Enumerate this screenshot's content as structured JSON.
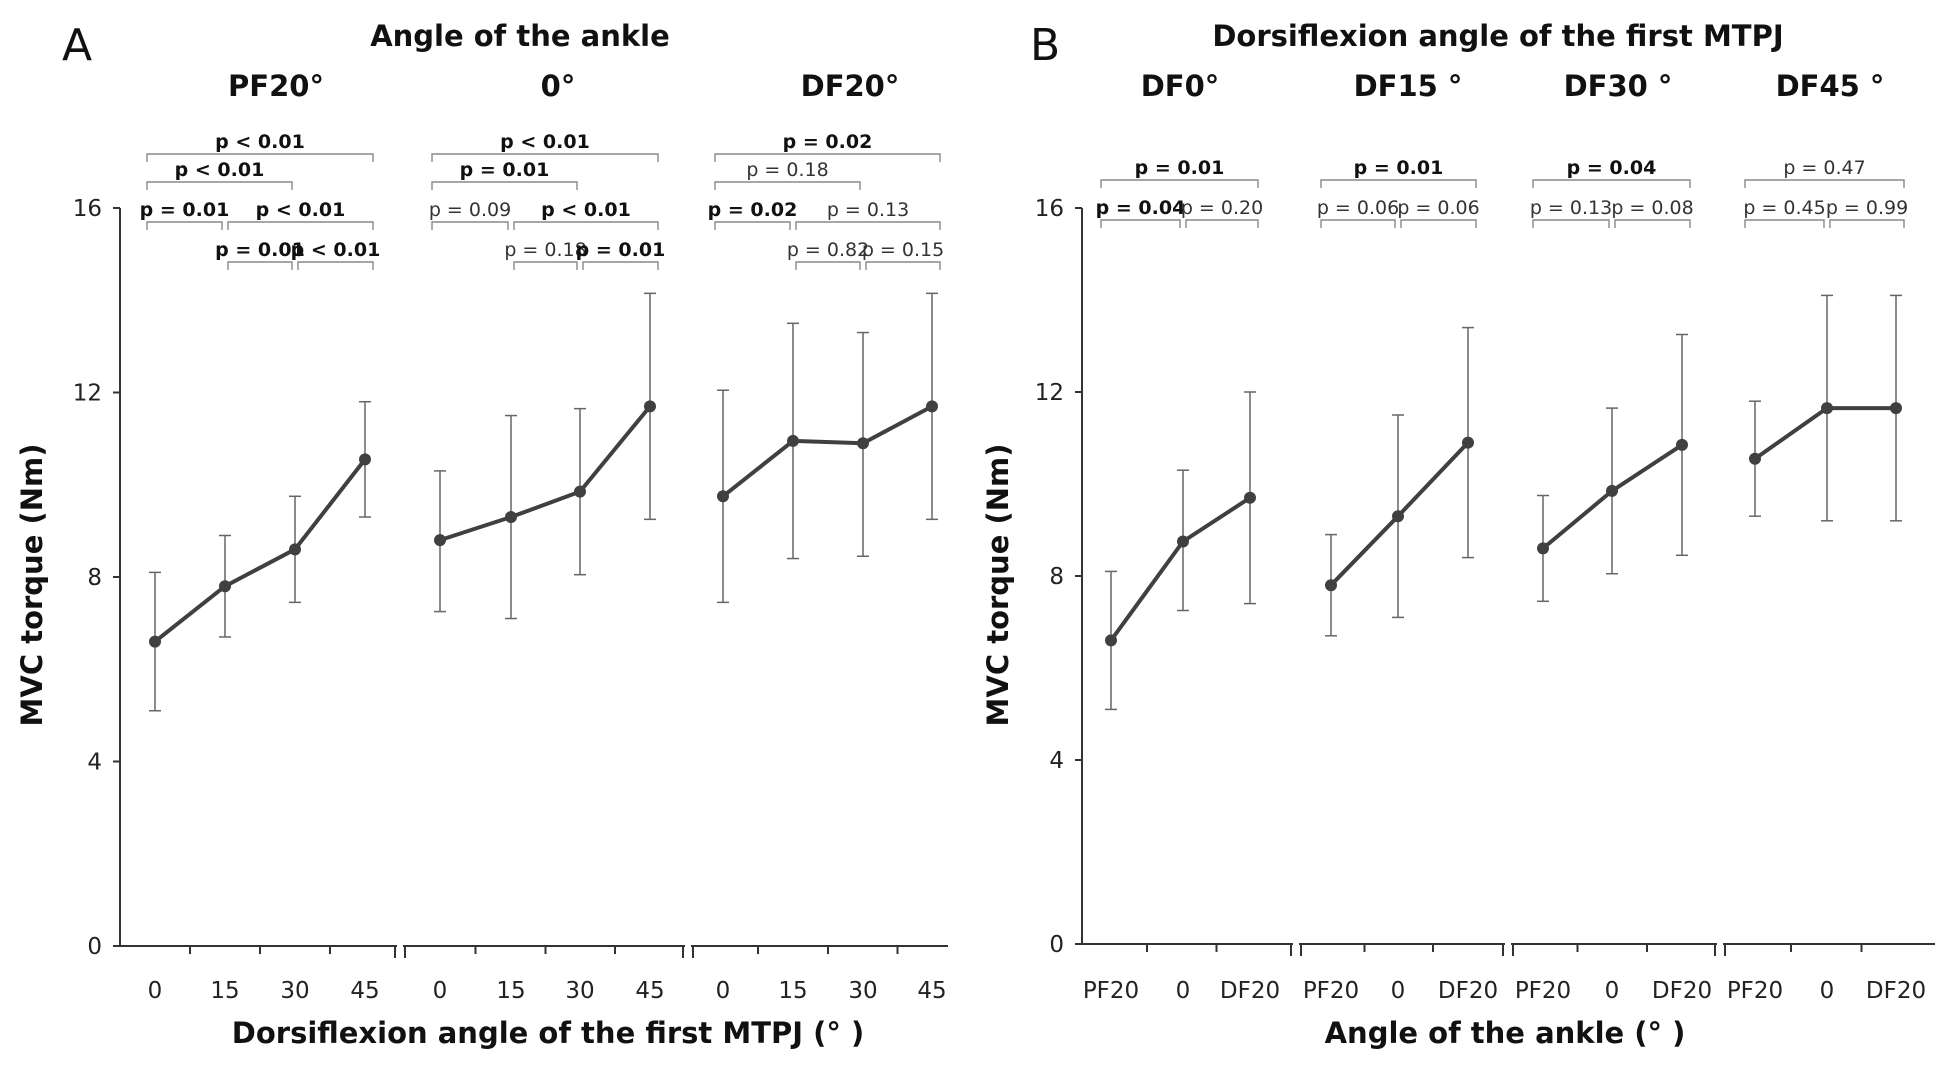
{
  "chart_data": [
    {
      "panel": "A",
      "type": "line",
      "title": "Angle of the ankle",
      "xlabel": "Dorsiflexion angle of the first MTPJ (°  )",
      "ylabel": "MVC torque (Nm)",
      "ylim": [
        0,
        16
      ],
      "yticks": [
        "0",
        "4",
        "8",
        "12",
        "16"
      ],
      "groups": [
        {
          "label": "PF20°",
          "categories": [
            "0",
            "15",
            "30",
            "45"
          ],
          "values": [
            6.6,
            7.8,
            8.6,
            10.55
          ],
          "err_low": [
            5.1,
            6.7,
            7.45,
            9.3
          ],
          "err_high": [
            8.1,
            8.9,
            9.75,
            11.8
          ],
          "comparisons": [
            {
              "i": 0,
              "j": 3,
              "label": "p < 0.01",
              "sig": true
            },
            {
              "i": 0,
              "j": 2,
              "label": "p < 0.01",
              "sig": true
            },
            {
              "i": 0,
              "j": 1,
              "label": "p = 0.01",
              "sig": true
            },
            {
              "i": 1,
              "j": 3,
              "label": "p < 0.01",
              "sig": true
            },
            {
              "i": 1,
              "j": 2,
              "label": "p = 0.01",
              "sig": true
            },
            {
              "i": 2,
              "j": 3,
              "label": "p < 0.01",
              "sig": true
            }
          ]
        },
        {
          "label": "0°",
          "categories": [
            "0",
            "15",
            "30",
            "45"
          ],
          "values": [
            8.8,
            9.3,
            9.85,
            11.7
          ],
          "err_low": [
            7.25,
            7.1,
            8.05,
            9.25
          ],
          "err_high": [
            10.3,
            11.5,
            11.65,
            14.15
          ],
          "comparisons": [
            {
              "i": 0,
              "j": 3,
              "label": "p < 0.01",
              "sig": true
            },
            {
              "i": 0,
              "j": 2,
              "label": "p = 0.01",
              "sig": true
            },
            {
              "i": 0,
              "j": 1,
              "label": "p = 0.09",
              "sig": false
            },
            {
              "i": 1,
              "j": 3,
              "label": "p < 0.01",
              "sig": true
            },
            {
              "i": 1,
              "j": 2,
              "label": "p = 0.18",
              "sig": false
            },
            {
              "i": 2,
              "j": 3,
              "label": "p = 0.01",
              "sig": true
            }
          ]
        },
        {
          "label": "DF20°",
          "categories": [
            "0",
            "15",
            "30",
            "45"
          ],
          "values": [
            9.75,
            10.95,
            10.9,
            11.7
          ],
          "err_low": [
            7.45,
            8.4,
            8.45,
            9.25
          ],
          "err_high": [
            12.05,
            13.5,
            13.3,
            14.15
          ],
          "comparisons": [
            {
              "i": 0,
              "j": 3,
              "label": "p = 0.02",
              "sig": true
            },
            {
              "i": 0,
              "j": 2,
              "label": "p = 0.18",
              "sig": false
            },
            {
              "i": 0,
              "j": 1,
              "label": "p = 0.02",
              "sig": true
            },
            {
              "i": 1,
              "j": 3,
              "label": "p = 0.13",
              "sig": false
            },
            {
              "i": 1,
              "j": 2,
              "label": "p = 0.82",
              "sig": false
            },
            {
              "i": 2,
              "j": 3,
              "label": "p = 0.15",
              "sig": false
            }
          ]
        }
      ]
    },
    {
      "panel": "B",
      "type": "line",
      "title": "Dorsiflexion angle of the first MTPJ",
      "xlabel": "Angle of the ankle (°  )",
      "ylabel": "MVC torque (Nm)",
      "ylim": [
        0,
        16
      ],
      "yticks": [
        "0",
        "4",
        "8",
        "12",
        "16"
      ],
      "groups": [
        {
          "label": "DF0°",
          "categories": [
            "PF20",
            "0",
            "DF20"
          ],
          "values": [
            6.6,
            8.75,
            9.7
          ],
          "err_low": [
            5.1,
            7.25,
            7.4
          ],
          "err_high": [
            8.1,
            10.3,
            12.0
          ],
          "comparisons": [
            {
              "i": 0,
              "j": 2,
              "label": "p = 0.01",
              "sig": true
            },
            {
              "i": 0,
              "j": 1,
              "label": "p = 0.04",
              "sig": true
            },
            {
              "i": 1,
              "j": 2,
              "label": "p = 0.20",
              "sig": false
            }
          ]
        },
        {
          "label": "DF15 °",
          "categories": [
            "PF20",
            "0",
            "DF20"
          ],
          "values": [
            7.8,
            9.3,
            10.9
          ],
          "err_low": [
            6.7,
            7.1,
            8.4
          ],
          "err_high": [
            8.9,
            11.5,
            13.4
          ],
          "comparisons": [
            {
              "i": 0,
              "j": 2,
              "label": "p = 0.01",
              "sig": true
            },
            {
              "i": 0,
              "j": 1,
              "label": "p = 0.06",
              "sig": false
            },
            {
              "i": 1,
              "j": 2,
              "label": "p = 0.06",
              "sig": false
            }
          ]
        },
        {
          "label": "DF30 °",
          "categories": [
            "PF20",
            "0",
            "DF20"
          ],
          "values": [
            8.6,
            9.85,
            10.85
          ],
          "err_low": [
            7.45,
            8.05,
            8.45
          ],
          "err_high": [
            9.75,
            11.65,
            13.25
          ],
          "comparisons": [
            {
              "i": 0,
              "j": 2,
              "label": "p = 0.04",
              "sig": true
            },
            {
              "i": 0,
              "j": 1,
              "label": "p = 0.13",
              "sig": false
            },
            {
              "i": 1,
              "j": 2,
              "label": "p = 0.08",
              "sig": false
            }
          ]
        },
        {
          "label": "DF45 °",
          "categories": [
            "PF20",
            "0",
            "DF20"
          ],
          "values": [
            10.55,
            11.65,
            11.65
          ],
          "err_low": [
            9.3,
            9.2,
            9.2
          ],
          "err_high": [
            11.8,
            14.1,
            14.1
          ],
          "comparisons": [
            {
              "i": 0,
              "j": 2,
              "label": "p = 0.47",
              "sig": false
            },
            {
              "i": 0,
              "j": 1,
              "label": "p = 0.45",
              "sig": false
            },
            {
              "i": 1,
              "j": 2,
              "label": "p = 0.99",
              "sig": false
            }
          ]
        }
      ]
    }
  ],
  "colors": {
    "line": "#404040",
    "errorbar": "#666666",
    "axis": "#333333",
    "bracket": "#888888"
  }
}
